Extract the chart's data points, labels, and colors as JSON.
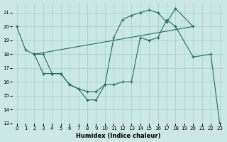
{
  "xlabel": "Humidex (Indice chaleur)",
  "bg_color": "#cce8e4",
  "grid_color": "#aad4cc",
  "line_color": "#1a6e5e",
  "xlim": [
    -0.5,
    23.5
  ],
  "ylim": [
    13,
    21.7
  ],
  "yticks": [
    13,
    14,
    15,
    16,
    17,
    18,
    19,
    20,
    21
  ],
  "xticks": [
    0,
    1,
    2,
    3,
    4,
    5,
    6,
    7,
    8,
    9,
    10,
    11,
    12,
    13,
    14,
    15,
    16,
    17,
    18,
    19,
    20,
    21,
    22,
    23
  ],
  "line1_x": [
    0,
    1,
    2,
    3,
    4,
    5,
    6,
    7,
    8,
    9,
    10,
    11,
    12,
    13,
    14,
    15,
    16,
    17,
    18,
    20,
    22,
    23
  ],
  "line1_y": [
    20.0,
    18.3,
    18.0,
    16.6,
    16.6,
    16.6,
    15.8,
    15.5,
    14.7,
    14.7,
    15.8,
    15.8,
    16.0,
    16.0,
    19.2,
    19.0,
    19.2,
    20.5,
    20.0,
    17.8,
    18.0,
    13.0
  ],
  "line3_x": [
    2,
    3,
    4,
    5,
    6,
    7,
    8,
    9,
    10,
    11,
    12,
    13,
    14,
    15,
    16,
    17,
    18,
    20
  ],
  "line3_y": [
    18.0,
    18.0,
    16.6,
    16.6,
    15.8,
    15.5,
    15.3,
    15.3,
    15.8,
    19.2,
    20.5,
    20.8,
    21.0,
    21.2,
    21.0,
    20.3,
    21.3,
    20.0
  ]
}
